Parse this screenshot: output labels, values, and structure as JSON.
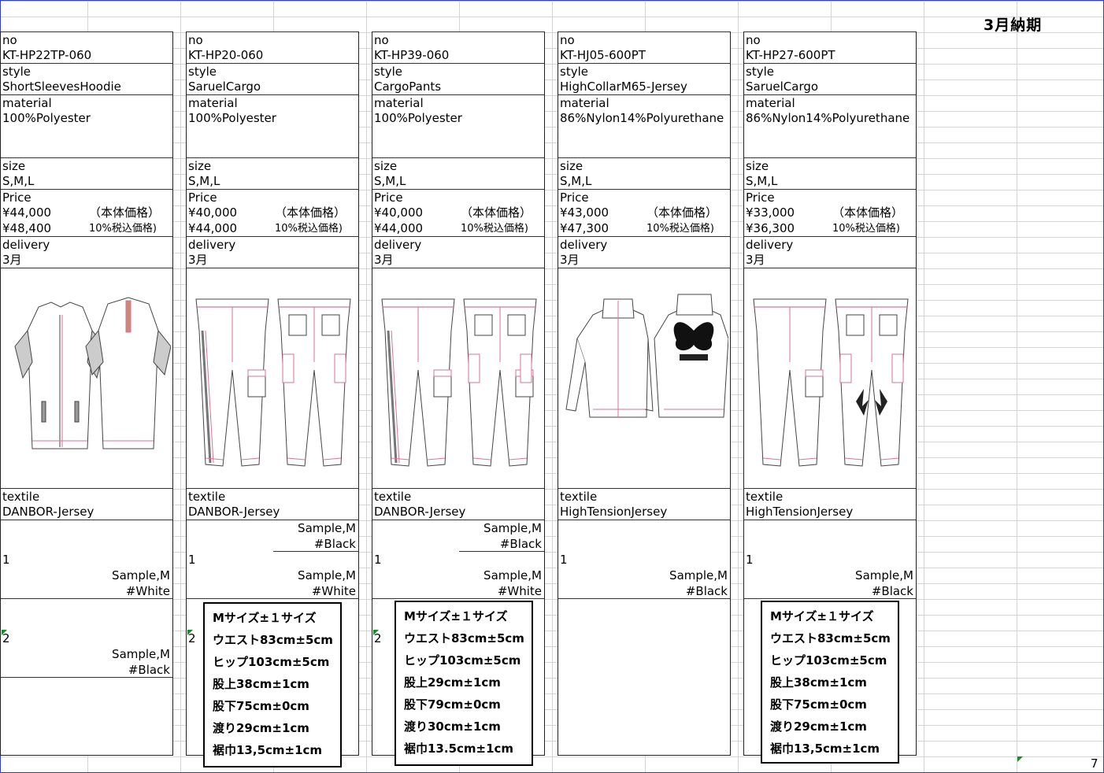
{
  "title": "3月納期",
  "page_number": "7",
  "labels": {
    "no": "no",
    "style": "style",
    "material": "material",
    "size": "size",
    "price": "Price",
    "delivery": "delivery",
    "textile": "textile",
    "tax_base": "（本体価格）",
    "tax_incl": "10%税込価格)"
  },
  "cards": [
    {
      "no": "KT-HP22TP-060",
      "style": "ShortSleevesHoodie",
      "material": "100%Polyester",
      "size": "S,M,L",
      "price_base": "¥44,000",
      "price_incl": "¥48,400",
      "delivery": "3月",
      "textile": "DANBOR-Jersey",
      "sample_top": null,
      "row1_num": "1",
      "row1_sample": "Sample,M",
      "row1_color": "#White",
      "row2_num": "2",
      "row2_sample": "Sample,M",
      "row2_color": "#Black"
    },
    {
      "no": "KT-HP20-060",
      "style": "SaruelCargo",
      "material": "100%Polyester",
      "size": "S,M,L",
      "price_base": "¥40,000",
      "price_incl": "¥44,000",
      "delivery": "3月",
      "textile": "DANBOR-Jersey",
      "sample_top": "Sample,M",
      "color_top": "#Black",
      "row1_num": "1",
      "row1_sample": "Sample,M",
      "row1_color": "#White",
      "row2_num": "2"
    },
    {
      "no": "KT-HP39-060",
      "style": "CargoPants",
      "material": "100%Polyester",
      "size": "S,M,L",
      "price_base": "¥40,000",
      "price_incl": "¥44,000",
      "delivery": "3月",
      "textile": "DANBOR-Jersey",
      "sample_top": "Sample,M",
      "color_top": "#Black",
      "row1_num": "1",
      "row1_sample": "Sample,M",
      "row1_color": "#White",
      "row2_num": "2"
    },
    {
      "no": "KT-HJ05-600PT",
      "style": "HighCollarM65-Jersey",
      "material": "86%Nylon14%Polyurethane",
      "size": "S,M,L",
      "price_base": "¥43,000",
      "price_incl": "¥47,300",
      "delivery": "3月",
      "textile": "HighTensionJersey",
      "row1_num": "1",
      "row1_sample": "Sample,M",
      "row1_color": "#Black"
    },
    {
      "no": "KT-HP27-600PT",
      "style": "SaruelCargo",
      "material": "86%Nylon14%Polyurethane",
      "size": "S,M,L",
      "price_base": "¥33,000",
      "price_incl": "¥36,300",
      "delivery": "3月",
      "textile": "HighTensionJersey",
      "row1_num": "1",
      "row1_sample": "Sample,M",
      "row1_color": "#Black"
    }
  ],
  "spec_boxes": [
    {
      "lines": [
        "Mサイズ±１サイズ",
        "ウエスト83cm±5cm",
        "ヒップ103cm±5cm",
        "股上38cm±1cm",
        "股下75cm±0cm",
        "渡り29cm±1cm",
        "裾巾13,5cm±1cm"
      ]
    },
    {
      "lines": [
        "Mサイズ±１サイズ",
        "ウエスト83cm±5cm",
        "ヒップ103cm±5cm",
        "股上29cm±1cm",
        "股下79cm±0cm",
        "渡り30cm±1cm",
        "裾巾13.5cm±1cm"
      ]
    },
    {
      "lines": [
        "Mサイズ±１サイズ",
        "ウエスト83cm±5cm",
        "ヒップ103cm±5cm",
        "股上38cm±1cm",
        "股下75cm±0cm",
        "渡り29cm±1cm",
        "裾巾13,5cm±1cm"
      ]
    }
  ],
  "sketch_icons": [
    "hoodie-sketch-icon",
    "saruel-cargo-sketch-icon",
    "cargo-pants-sketch-icon",
    "m65-jacket-sketch-icon",
    "saruel-cargo-sketch-icon"
  ],
  "colors": {
    "sheet_border": "#2d3bd6",
    "trim_pink": "#d9739a",
    "grid": "#d4d4d4"
  }
}
